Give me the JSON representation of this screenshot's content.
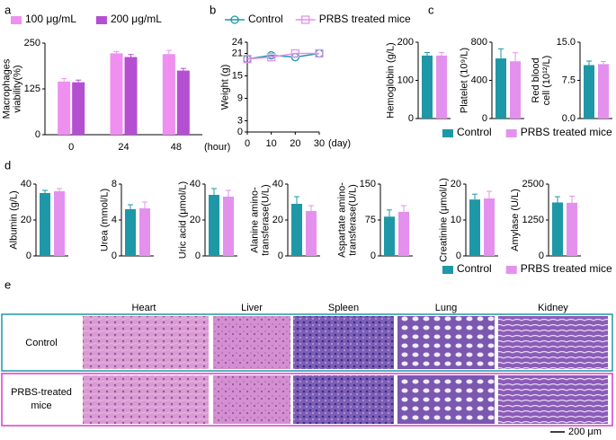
{
  "chart_data": [
    {
      "type": "bar",
      "panel": "a",
      "ylabel": [
        "Macrophages",
        "viability(%)"
      ],
      "xlabel": "(hour)",
      "categories": [
        "0",
        "24",
        "48"
      ],
      "series": [
        {
          "name": "100 μg/mL",
          "color": "#ef8ff0",
          "values": [
            145,
            222,
            220
          ],
          "errors": [
            8,
            5,
            10
          ]
        },
        {
          "name": "200 μg/mL",
          "color": "#b54fd2",
          "values": [
            143,
            212,
            175
          ],
          "errors": [
            6,
            7,
            6
          ]
        }
      ],
      "ylim": [
        0,
        250
      ],
      "yticks": [
        0,
        125,
        250
      ]
    },
    {
      "type": "line",
      "panel": "b",
      "ylabel": [
        "Weight (g)"
      ],
      "xlabel": "(day)",
      "x": [
        0,
        10,
        20,
        30
      ],
      "xlim": [
        0,
        30
      ],
      "xticks": [
        0,
        10,
        20,
        30
      ],
      "series": [
        {
          "name": "Control",
          "color": "#1e98a6",
          "marker": "circle",
          "values": [
            19.5,
            20.5,
            20,
            21
          ]
        },
        {
          "name": "PRBS treated mice",
          "color": "#e491ee",
          "marker": "square",
          "values": [
            19.5,
            20,
            21,
            21
          ]
        }
      ],
      "ylim": [
        0,
        24
      ],
      "yticks": [
        0,
        3,
        9,
        15,
        21,
        24
      ]
    },
    {
      "type": "bars",
      "panel": "c",
      "series": [
        {
          "name": "Control",
          "color": "#1e98a6"
        },
        {
          "name": "PRBS treated mice",
          "color": "#e491ee"
        }
      ],
      "subplots": [
        {
          "ylabel": [
            "Hemoglobin (g/L)"
          ],
          "ylim": [
            0,
            200
          ],
          "yticks": [
            0,
            100,
            200
          ],
          "values": [
            165,
            165
          ],
          "errors": [
            8,
            8
          ]
        },
        {
          "ylabel": [
            "Platelet (10⁹/L)"
          ],
          "ylim": [
            0,
            800
          ],
          "yticks": [
            0,
            400,
            800
          ],
          "values": [
            630,
            600
          ],
          "errors": [
            100,
            90
          ]
        },
        {
          "ylabel": [
            "Red blood",
            "cell (10¹²/L)"
          ],
          "ylim": [
            0,
            15
          ],
          "yticks": [
            {
              "value": 0,
              "label": "0.0"
            },
            7.5,
            {
              "value": 15,
              "label": "15.0"
            }
          ],
          "values": [
            10.5,
            10.7
          ],
          "errors": [
            0.8,
            0.5
          ]
        }
      ]
    },
    {
      "type": "bars",
      "panel": "d",
      "series": [
        {
          "name": "Control",
          "color": "#1e98a6"
        },
        {
          "name": "PRBS treated mice",
          "color": "#e491ee"
        }
      ],
      "subplots": [
        {
          "ylabel": [
            "Albumin (g/L)"
          ],
          "ylim": [
            0,
            40
          ],
          "yticks": [
            0,
            20,
            40
          ],
          "values": [
            35,
            36
          ],
          "errors": [
            1.5,
            1.5
          ]
        },
        {
          "ylabel": [
            "Urea (mmol/L)"
          ],
          "ylim": [
            0,
            8
          ],
          "yticks": [
            0,
            4,
            8
          ],
          "values": [
            5.2,
            5.3
          ],
          "errors": [
            0.5,
            0.7
          ]
        },
        {
          "ylabel": [
            "Uric acid (μmol/L)"
          ],
          "ylim": [
            0,
            40
          ],
          "yticks": [
            0,
            20,
            40
          ],
          "values": [
            34,
            33
          ],
          "errors": [
            3.5,
            3.5
          ]
        },
        {
          "ylabel": [
            "Alanine amino-",
            "transferase(U/L)"
          ],
          "ylim": [
            0,
            40
          ],
          "yticks": [
            0,
            20,
            40
          ],
          "values": [
            29,
            25
          ],
          "errors": [
            4,
            3
          ]
        },
        {
          "ylabel": [
            "Aspartate amino-",
            "transferase(U/L)"
          ],
          "ylim": [
            0,
            150
          ],
          "yticks": [
            0,
            75,
            150
          ],
          "values": [
            82,
            92
          ],
          "errors": [
            14,
            13
          ]
        },
        {
          "ylabel": [
            "Creatinine (μmol/L)"
          ],
          "ylim": [
            0,
            20
          ],
          "yticks": [
            0,
            10,
            20
          ],
          "values": [
            15.7,
            16
          ],
          "errors": [
            1.5,
            2
          ]
        },
        {
          "ylabel": [
            "Amylase (U/L)"
          ],
          "ylim": [
            0,
            2500
          ],
          "yticks": [
            0,
            1250,
            2500
          ],
          "values": [
            1860,
            1850
          ],
          "errors": [
            200,
            230
          ]
        }
      ]
    }
  ],
  "histology": {
    "panel": "e",
    "columns": [
      "Heart",
      "Liver",
      "Spleen",
      "Lung",
      "Kidney"
    ],
    "rows": [
      [
        "Control"
      ],
      [
        "PRBS-treated",
        "mice"
      ]
    ],
    "scale_bar": "200 μm"
  }
}
